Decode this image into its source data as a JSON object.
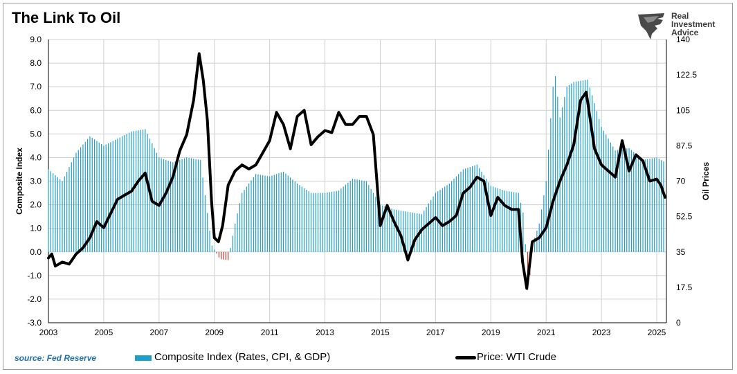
{
  "header": {
    "title": "The Link To Oil"
  },
  "logo": {
    "line1": "Real",
    "line2": "Investment",
    "line3": "Advice",
    "icon": "eagle-icon"
  },
  "footer": {
    "source": "source: Fed Reserve"
  },
  "legend": {
    "bar_label": "Composite Index (Rates, CPI, & GDP)",
    "line_label": "Price: WTI Crude"
  },
  "colors": {
    "bars_positive": "#1e9fc9",
    "bars_negative": "#c0392b",
    "line": "#000000",
    "grid": "#cfcfcf"
  },
  "chart_data": {
    "type": "bar+line",
    "grid": true,
    "x_range": [
      2003,
      2025.35
    ],
    "x_ticks": [
      "2003",
      "2005",
      "2007",
      "2009",
      "2011",
      "2013",
      "2015",
      "2017",
      "2019",
      "2021",
      "2023",
      "2025"
    ],
    "left_axis": {
      "label": "Composite Index",
      "range": [
        -3.0,
        9.0
      ],
      "ticks": [
        "9.0",
        "8.0",
        "7.0",
        "6.0",
        "5.0",
        "4.0",
        "3.0",
        "2.0",
        "1.0",
        "0.0",
        "-1.0",
        "-2.0",
        "-3.0"
      ]
    },
    "right_axis": {
      "label": "Oil Prices",
      "range": [
        0,
        140
      ],
      "ticks": [
        "140",
        "122.5",
        "105",
        "87.5",
        "70",
        "52.5",
        "35",
        "17.5",
        "0"
      ]
    },
    "series": [
      {
        "name": "Composite Index (Rates, CPI, & GDP)",
        "kind": "bar",
        "axis": "left",
        "x": [
          2003.0,
          2003.5,
          2004.0,
          2004.5,
          2005.0,
          2005.5,
          2006.0,
          2006.5,
          2007.0,
          2007.5,
          2008.0,
          2008.5,
          2008.9,
          2009.2,
          2009.5,
          2009.75,
          2010.0,
          2010.5,
          2011.0,
          2011.5,
          2012.0,
          2012.5,
          2013.0,
          2013.5,
          2014.0,
          2014.5,
          2015.0,
          2015.5,
          2016.0,
          2016.5,
          2017.0,
          2017.5,
          2018.0,
          2018.5,
          2019.0,
          2019.5,
          2020.0,
          2020.2,
          2020.35,
          2020.5,
          2020.75,
          2021.0,
          2021.3,
          2021.5,
          2021.75,
          2022.0,
          2022.5,
          2023.0,
          2023.5,
          2024.0,
          2024.5,
          2025.0,
          2025.3
        ],
        "values": [
          3.5,
          3.0,
          4.2,
          4.9,
          4.5,
          4.8,
          5.1,
          5.2,
          4.0,
          3.8,
          4.0,
          3.9,
          0.3,
          -0.3,
          -0.35,
          1.2,
          2.5,
          3.3,
          3.2,
          3.4,
          2.9,
          2.5,
          2.5,
          2.6,
          3.1,
          3.0,
          2.0,
          1.8,
          1.7,
          1.6,
          2.5,
          2.9,
          3.5,
          3.7,
          2.8,
          2.6,
          2.5,
          1.5,
          -2.0,
          0.3,
          1.2,
          3.0,
          7.8,
          5.7,
          7.0,
          7.2,
          7.3,
          5.3,
          4.3,
          4.4,
          3.9,
          4.0,
          3.8
        ]
      },
      {
        "name": "Price: WTI Crude",
        "kind": "line",
        "axis": "right",
        "x": [
          2003.0,
          2003.12,
          2003.25,
          2003.5,
          2003.75,
          2004.0,
          2004.25,
          2004.5,
          2004.75,
          2005.0,
          2005.25,
          2005.5,
          2005.75,
          2006.0,
          2006.25,
          2006.5,
          2006.75,
          2007.0,
          2007.25,
          2007.5,
          2007.75,
          2008.0,
          2008.25,
          2008.45,
          2008.6,
          2008.75,
          2008.9,
          2009.0,
          2009.15,
          2009.3,
          2009.5,
          2009.75,
          2010.0,
          2010.25,
          2010.5,
          2010.75,
          2011.0,
          2011.25,
          2011.5,
          2011.75,
          2012.0,
          2012.25,
          2012.5,
          2012.75,
          2013.0,
          2013.25,
          2013.5,
          2013.75,
          2014.0,
          2014.25,
          2014.5,
          2014.75,
          2015.0,
          2015.25,
          2015.5,
          2015.75,
          2016.0,
          2016.25,
          2016.5,
          2016.75,
          2017.0,
          2017.25,
          2017.5,
          2017.75,
          2018.0,
          2018.25,
          2018.5,
          2018.75,
          2019.0,
          2019.25,
          2019.5,
          2019.75,
          2020.0,
          2020.15,
          2020.3,
          2020.5,
          2020.75,
          2021.0,
          2021.25,
          2021.5,
          2021.75,
          2022.0,
          2022.25,
          2022.45,
          2022.6,
          2022.75,
          2023.0,
          2023.25,
          2023.5,
          2023.75,
          2024.0,
          2024.25,
          2024.5,
          2024.75,
          2025.0,
          2025.15,
          2025.3
        ],
        "values": [
          32,
          34,
          28,
          30,
          29,
          34,
          37,
          42,
          50,
          47,
          54,
          61,
          63,
          65,
          70,
          74,
          60,
          58,
          64,
          72,
          85,
          93,
          110,
          133,
          120,
          100,
          60,
          42,
          40,
          48,
          68,
          75,
          78,
          76,
          78,
          84,
          90,
          104,
          98,
          86,
          102,
          105,
          88,
          92,
          95,
          94,
          104,
          98,
          98,
          102,
          102,
          93,
          48,
          58,
          50,
          43,
          31,
          41,
          46,
          49,
          52,
          48,
          50,
          53,
          64,
          67,
          72,
          70,
          53,
          62,
          58,
          56,
          56,
          30,
          17,
          40,
          42,
          47,
          60,
          70,
          78,
          88,
          110,
          114,
          100,
          86,
          78,
          75,
          72,
          90,
          75,
          83,
          80,
          70,
          71,
          68,
          62
        ]
      }
    ]
  }
}
